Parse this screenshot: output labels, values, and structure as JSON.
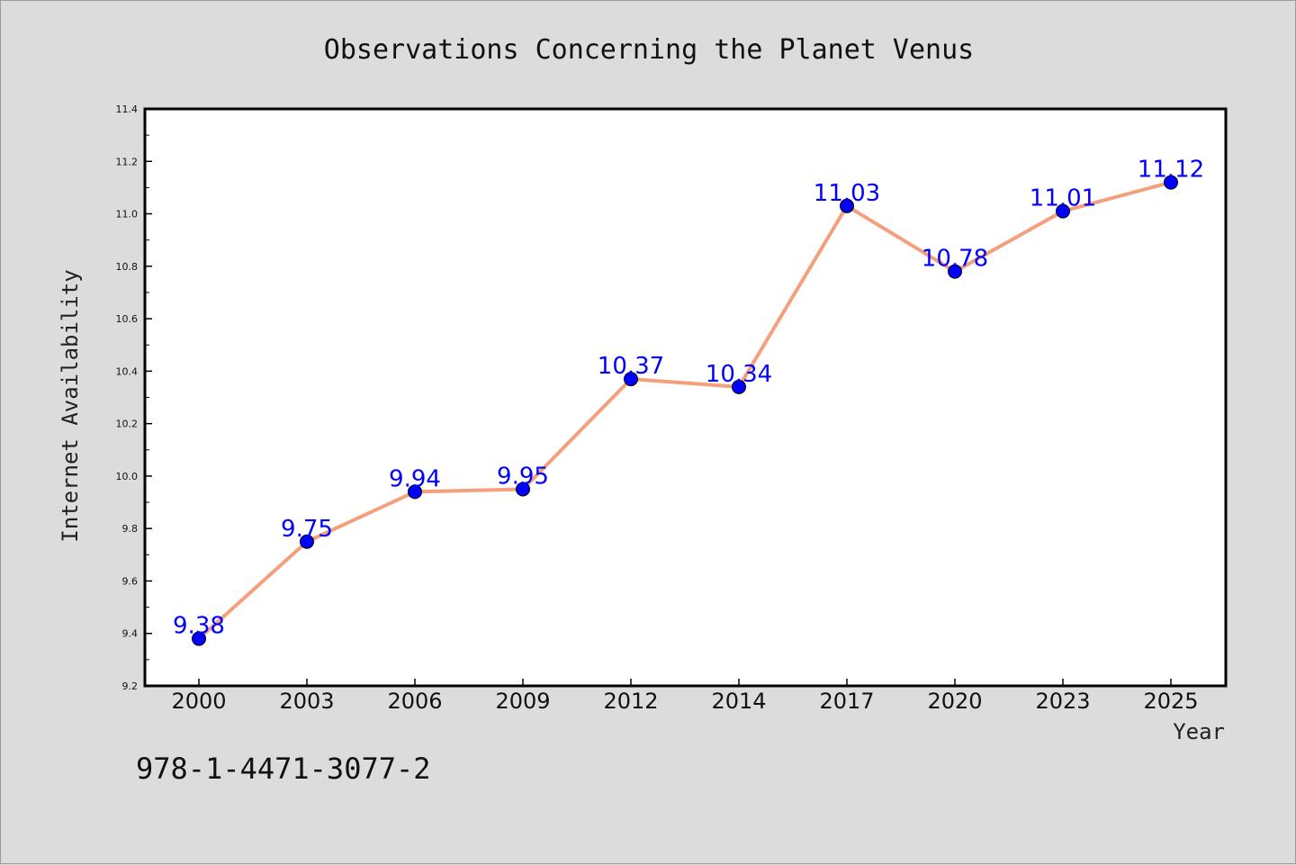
{
  "chart_data": {
    "type": "line",
    "title": "Observations Concerning the Planet Venus",
    "xlabel": "Year",
    "ylabel": "Internet Availability",
    "categories": [
      "2000",
      "2003",
      "2006",
      "2009",
      "2012",
      "2014",
      "2017",
      "2020",
      "2023",
      "2025"
    ],
    "series": [
      {
        "values": [
          9.38,
          9.75,
          9.94,
          9.95,
          10.37,
          10.34,
          11.03,
          10.78,
          11.01,
          11.12
        ],
        "line_color": "#f4a07c",
        "marker_color": "#0000ff"
      }
    ],
    "data_labels": [
      "9.38",
      "9.75",
      "9.94",
      "9.95",
      "10.37",
      "10.34",
      "11.03",
      "10.78",
      "11.01",
      "11.12"
    ],
    "ylim": [
      9.2,
      11.4
    ],
    "yticks": [
      "9.2",
      "9.4",
      "9.6",
      "9.8",
      "10.0",
      "10.2",
      "10.4",
      "10.6",
      "10.8",
      "11.0",
      "11.2",
      "11.4"
    ],
    "grid": false,
    "legend": "none"
  },
  "annotation": "978-1-4471-3077-2",
  "colors": {
    "background": "#dcdcdc",
    "plot_area": "#ffffff",
    "data_label": "#0000ff"
  }
}
